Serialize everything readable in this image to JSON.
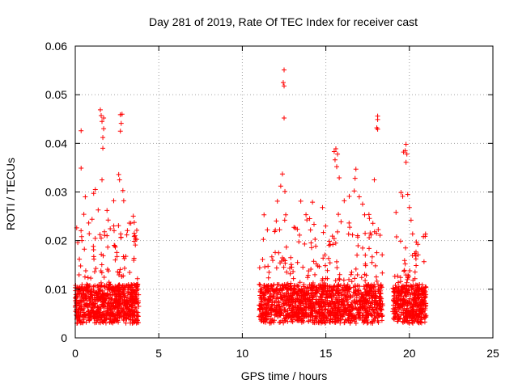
{
  "chart_data": {
    "type": "scatter",
    "title": "Day 281 of 2019, Rate Of TEC Index for receiver cast",
    "xlabel": "GPS time / hours",
    "ylabel": "ROTI / TECUs",
    "xlim": [
      0,
      25
    ],
    "ylim": [
      0,
      0.06
    ],
    "x_ticks": [
      0,
      5,
      10,
      15,
      20,
      25
    ],
    "x_tick_labels": [
      "0",
      "5",
      "10",
      "15",
      "20",
      "25"
    ],
    "y_ticks": [
      0,
      0.01,
      0.02,
      0.03,
      0.04,
      0.05,
      0.06
    ],
    "y_tick_labels": [
      "0",
      "0.01",
      "0.02",
      "0.03",
      "0.04",
      "0.05",
      "0.06"
    ],
    "grid": true,
    "marker": "plus",
    "marker_color": "#ff0000",
    "series": [
      {
        "name": "ROTI",
        "clusters": [
          {
            "x_start": 0.0,
            "x_end": 3.8,
            "y_min": 0.003,
            "y_max": 0.011,
            "dense_count": 650,
            "sparse_count": 180,
            "sparse_y_max": 0.025
          },
          {
            "x_start": 11.0,
            "x_end": 18.4,
            "y_min": 0.003,
            "y_max": 0.011,
            "dense_count": 1100,
            "sparse_count": 320,
            "sparse_y_max": 0.024
          },
          {
            "x_start": 19.0,
            "x_end": 21.0,
            "y_min": 0.003,
            "y_max": 0.011,
            "dense_count": 350,
            "sparse_count": 90,
            "sparse_y_max": 0.02
          }
        ],
        "outliers": [
          [
            0.35,
            0.0426
          ],
          [
            0.35,
            0.0349
          ],
          [
            0.6,
            0.029
          ],
          [
            1.1,
            0.0297
          ],
          [
            1.2,
            0.0305
          ],
          [
            1.5,
            0.0469
          ],
          [
            1.55,
            0.0457
          ],
          [
            1.6,
            0.0445
          ],
          [
            1.7,
            0.0452
          ],
          [
            1.65,
            0.0412
          ],
          [
            1.65,
            0.039
          ],
          [
            1.7,
            0.043
          ],
          [
            1.6,
            0.0325
          ],
          [
            1.9,
            0.0262
          ],
          [
            2.3,
            0.0282
          ],
          [
            2.6,
            0.0336
          ],
          [
            2.65,
            0.0325
          ],
          [
            2.7,
            0.0459
          ],
          [
            2.8,
            0.046
          ],
          [
            2.75,
            0.0441
          ],
          [
            2.7,
            0.0425
          ],
          [
            2.85,
            0.0303
          ],
          [
            2.9,
            0.0282
          ],
          [
            11.3,
            0.0253
          ],
          [
            11.5,
            0.0222
          ],
          [
            12.1,
            0.0281
          ],
          [
            12.3,
            0.0312
          ],
          [
            12.4,
            0.0337
          ],
          [
            12.5,
            0.0551
          ],
          [
            12.45,
            0.0525
          ],
          [
            12.5,
            0.0518
          ],
          [
            12.5,
            0.0452
          ],
          [
            12.55,
            0.0301
          ],
          [
            12.6,
            0.0253
          ],
          [
            13.5,
            0.0281
          ],
          [
            14.2,
            0.0279
          ],
          [
            14.8,
            0.0268
          ],
          [
            15.5,
            0.0383
          ],
          [
            15.6,
            0.0389
          ],
          [
            15.7,
            0.0378
          ],
          [
            15.55,
            0.0366
          ],
          [
            15.65,
            0.0352
          ],
          [
            15.8,
            0.0329
          ],
          [
            16.1,
            0.0282
          ],
          [
            16.4,
            0.0291
          ],
          [
            16.7,
            0.0302
          ],
          [
            16.75,
            0.0328
          ],
          [
            16.8,
            0.0347
          ],
          [
            17.0,
            0.029
          ],
          [
            17.2,
            0.0275
          ],
          [
            17.9,
            0.0325
          ],
          [
            18.1,
            0.0456
          ],
          [
            18.1,
            0.0449
          ],
          [
            18.05,
            0.0432
          ],
          [
            18.1,
            0.0429
          ],
          [
            19.2,
            0.0258
          ],
          [
            19.5,
            0.0299
          ],
          [
            19.6,
            0.0291
          ],
          [
            19.65,
            0.0382
          ],
          [
            19.75,
            0.0385
          ],
          [
            19.8,
            0.0398
          ],
          [
            19.85,
            0.0378
          ],
          [
            19.8,
            0.0361
          ],
          [
            19.9,
            0.0295
          ],
          [
            20.0,
            0.0268
          ],
          [
            20.1,
            0.0242
          ]
        ]
      }
    ]
  }
}
